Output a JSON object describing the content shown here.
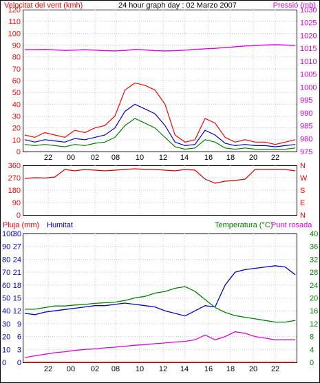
{
  "header": {
    "left_label": "Velocitat del vent (kmh)",
    "center_title": "24 hour graph day : 02 Marzo 2007",
    "right_label": "Pressió (mb)"
  },
  "bottom_header": {
    "left_label": "Pluja (mm)",
    "left2_label": "Humitat",
    "right_label1": "Temperatura (°C)",
    "right_label2": "Punt rosada"
  },
  "colors": {
    "wind_gust": "#ff0000",
    "wind_avg": "#0000cc",
    "wind_min": "#008000",
    "pressure": "#dd00dd",
    "direction": "#cc0000",
    "humidity": "#0000cc",
    "temperature": "#008000",
    "dewpoint": "#dd00dd",
    "rain": "#ff0000"
  },
  "x_ticks": [
    "22",
    "00",
    "02",
    "08",
    "10",
    "12",
    "14",
    "16",
    "18",
    "20",
    "22"
  ],
  "chart_data": [
    {
      "type": "line",
      "title": "24 hour graph day : 02 Marzo 2007",
      "ylabel": "Velocitat del vent (kmh)",
      "y2label": "Pressió (mb)",
      "ylim": [
        0,
        120
      ],
      "y2lim": [
        975,
        1030
      ],
      "yticks": [
        0,
        10,
        20,
        30,
        40,
        50,
        60,
        70,
        80,
        90,
        100,
        110,
        120
      ],
      "y2ticks": [
        975,
        980,
        985,
        990,
        995,
        1000,
        1005,
        1010,
        1015,
        1020,
        1025,
        1030
      ],
      "x": [
        0,
        1,
        2,
        3,
        4,
        5,
        6,
        7,
        8,
        9,
        10,
        11,
        12,
        13,
        14,
        15,
        16,
        17,
        18,
        19,
        20,
        21,
        22,
        23,
        24,
        25,
        26,
        27
      ],
      "series": [
        {
          "name": "gust",
          "axis": "left",
          "values": [
            14,
            12,
            16,
            14,
            12,
            18,
            16,
            20,
            22,
            30,
            52,
            58,
            56,
            52,
            40,
            14,
            8,
            10,
            28,
            24,
            12,
            8,
            10,
            8,
            8,
            6,
            8,
            10
          ]
        },
        {
          "name": "average",
          "axis": "left",
          "values": [
            10,
            8,
            10,
            9,
            8,
            11,
            10,
            12,
            14,
            20,
            34,
            40,
            36,
            32,
            22,
            8,
            5,
            6,
            18,
            14,
            7,
            5,
            6,
            5,
            5,
            4,
            5,
            6
          ]
        },
        {
          "name": "min",
          "axis": "left",
          "values": [
            6,
            5,
            6,
            5,
            4,
            6,
            5,
            7,
            8,
            12,
            22,
            28,
            24,
            20,
            12,
            4,
            2,
            3,
            10,
            8,
            3,
            2,
            3,
            2,
            2,
            2,
            2,
            3
          ]
        },
        {
          "name": "pressure",
          "axis": "right",
          "values": [
            1014.5,
            1014.5,
            1014.6,
            1014.4,
            1014.2,
            1014.3,
            1014.5,
            1014.3,
            1014.1,
            1014.0,
            1014.2,
            1014.6,
            1014.4,
            1014.1,
            1014.0,
            1014.1,
            1014.3,
            1014.6,
            1014.8,
            1015.0,
            1015.3,
            1015.6,
            1015.9,
            1016.1,
            1016.3,
            1016.4,
            1016.3,
            1016.1
          ]
        }
      ]
    },
    {
      "type": "line",
      "ylabel": "Wind direction",
      "ylim": [
        0,
        360
      ],
      "yticks": [
        0,
        90,
        180,
        270,
        360
      ],
      "y2ticks": [
        "N",
        "E",
        "S",
        "W",
        "N"
      ],
      "x": [
        0,
        1,
        2,
        3,
        4,
        5,
        6,
        7,
        8,
        9,
        10,
        11,
        12,
        13,
        14,
        15,
        16,
        17,
        18,
        19,
        20,
        21,
        22,
        23,
        24,
        25,
        26,
        27
      ],
      "series": [
        {
          "name": "direction",
          "values": [
            265,
            270,
            268,
            275,
            330,
            320,
            330,
            325,
            320,
            325,
            330,
            335,
            330,
            330,
            325,
            320,
            330,
            325,
            260,
            230,
            245,
            250,
            260,
            330,
            330,
            330,
            330,
            320
          ]
        }
      ]
    },
    {
      "type": "line",
      "ylabel": "Pluja (mm)",
      "y2label": "Temperatura (°C)",
      "y3label": "Humitat",
      "ylim": [
        0,
        100
      ],
      "y3lim": [
        0,
        30
      ],
      "y2lim": [
        0,
        40
      ],
      "yticks": [
        0,
        10,
        20,
        30,
        40,
        50,
        60,
        70,
        80,
        90,
        100
      ],
      "y3ticks": [
        0,
        3,
        6,
        9,
        12,
        15,
        18,
        21,
        24,
        27,
        30
      ],
      "y2ticks": [
        0,
        4,
        8,
        12,
        16,
        20,
        24,
        28,
        32,
        36,
        40
      ],
      "x": [
        0,
        1,
        2,
        3,
        4,
        5,
        6,
        7,
        8,
        9,
        10,
        11,
        12,
        13,
        14,
        15,
        16,
        17,
        18,
        19,
        20,
        21,
        22,
        23,
        24,
        25,
        26,
        27
      ],
      "series": [
        {
          "name": "Humitat",
          "axis": "left",
          "values": [
            38,
            37,
            39,
            40,
            41,
            42,
            43,
            44,
            44,
            45,
            46,
            45,
            44,
            43,
            40,
            38,
            36,
            40,
            44,
            43,
            60,
            70,
            72,
            73,
            74,
            75,
            74,
            68
          ]
        },
        {
          "name": "Temperatura",
          "axis": "right",
          "values": [
            16.5,
            16.5,
            17.0,
            17.5,
            17.5,
            17.8,
            18.0,
            18.3,
            18.5,
            18.7,
            19.2,
            20.0,
            20.5,
            21.5,
            22.0,
            23.0,
            23.5,
            22.0,
            19.5,
            17.0,
            15.5,
            14.5,
            14.0,
            13.5,
            13.0,
            12.5,
            12.5,
            13.0
          ]
        },
        {
          "name": "Punt rosada",
          "axis": "right",
          "values": [
            1.5,
            2.0,
            2.5,
            3.0,
            3.3,
            3.7,
            4.0,
            4.2,
            4.5,
            4.7,
            5.0,
            5.3,
            5.5,
            5.8,
            6.0,
            6.3,
            6.5,
            7.0,
            8.5,
            7.0,
            8.0,
            9.5,
            9.0,
            8.0,
            7.5,
            7.0,
            7.0,
            7.0
          ]
        },
        {
          "name": "Pluja",
          "axis": "left",
          "values": [
            0,
            0,
            0,
            0,
            0,
            0,
            0,
            0,
            0,
            0,
            0,
            0,
            0,
            0,
            0,
            0,
            0,
            0,
            0,
            0,
            0,
            0,
            0,
            0,
            0,
            0,
            0,
            0
          ]
        }
      ]
    }
  ]
}
